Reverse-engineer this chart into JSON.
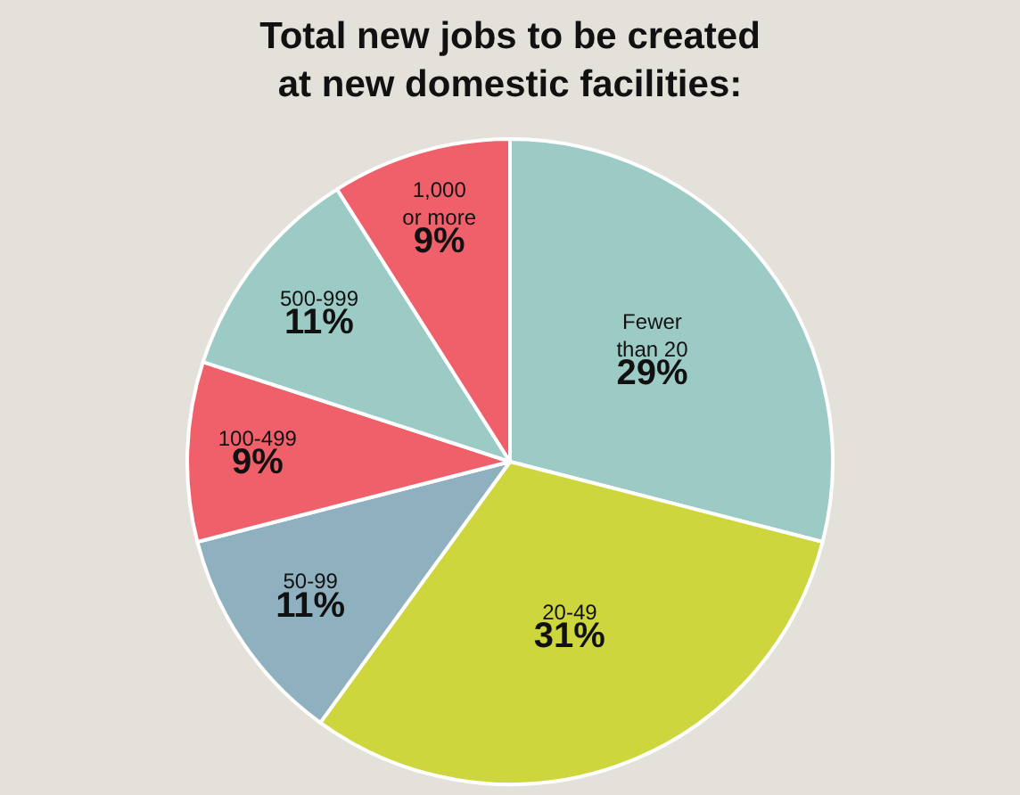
{
  "chart_data": {
    "type": "pie",
    "title": "Total new jobs to be created\nat new domestic facilities:",
    "categories": [
      "Fewer\nthan 20",
      "20-49",
      "50-99",
      "100-499",
      "500-999",
      "1,000\nor more"
    ],
    "values": [
      29,
      31,
      11,
      9,
      11,
      9
    ],
    "value_labels": [
      "29%",
      "31%",
      "11%",
      "9%",
      "11%",
      "9%"
    ],
    "colors": [
      "#9ccbc6",
      "#cdd63c",
      "#8fb0bf",
      "#f0606a",
      "#9ccbc6",
      "#f0606a"
    ],
    "legend": false
  }
}
